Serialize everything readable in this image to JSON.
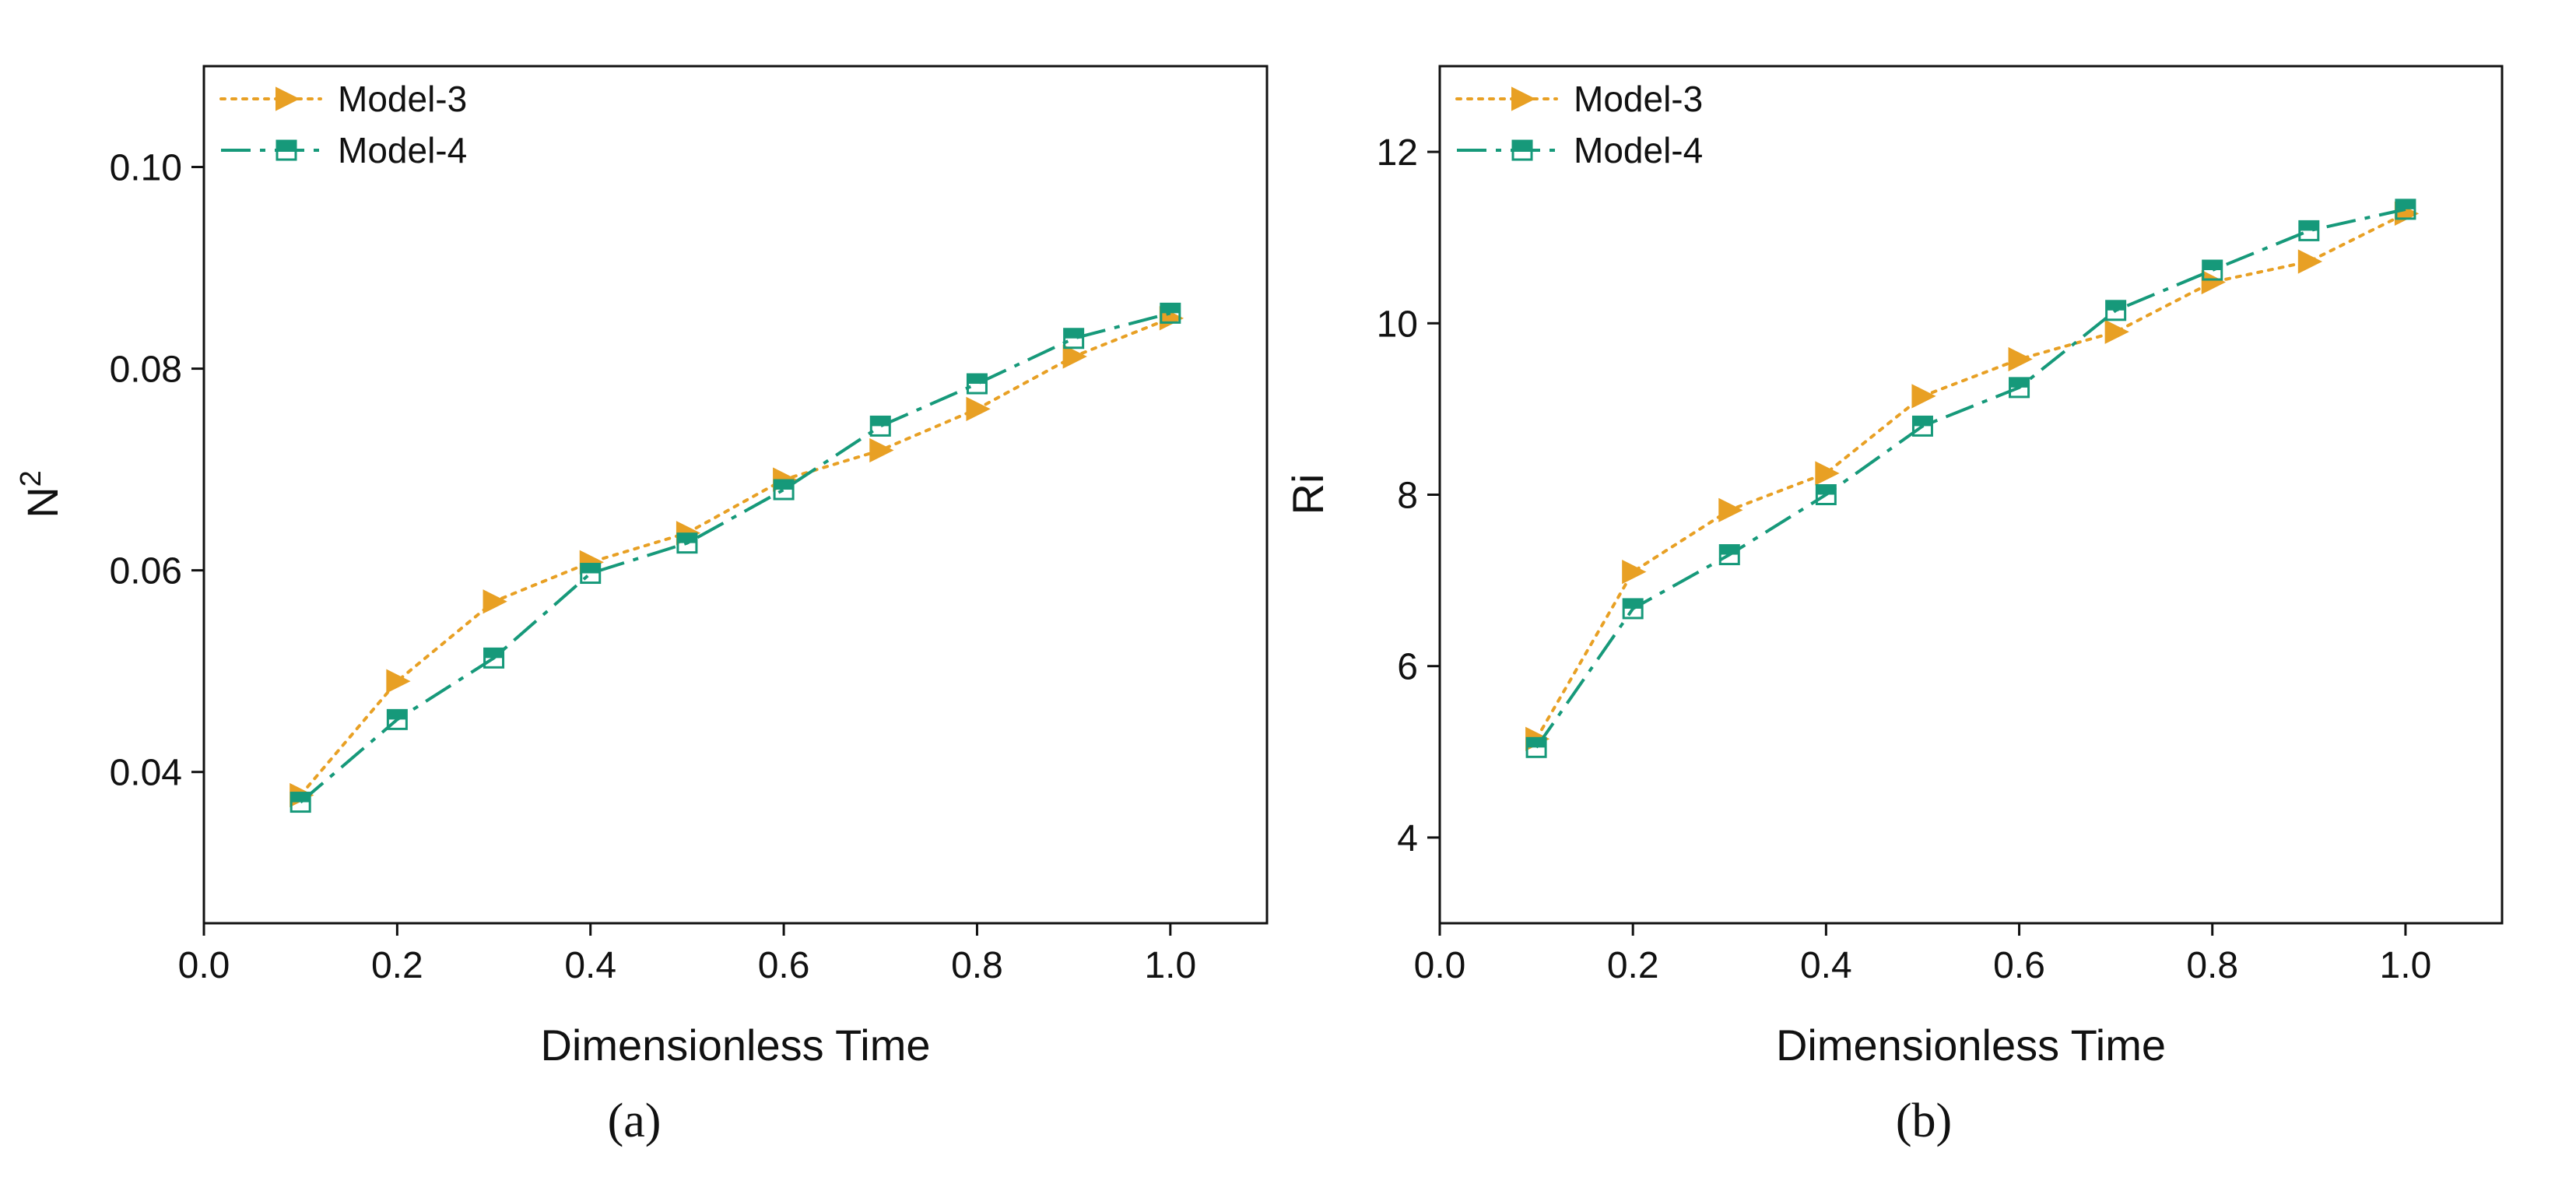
{
  "chart_data": [
    {
      "type": "line",
      "caption": "(a)",
      "xlabel": "Dimensionless Time",
      "ylabel_base": "N",
      "ylabel_sup": "2",
      "xlim": [
        0.0,
        1.1
      ],
      "ylim": [
        0.025,
        0.11
      ],
      "xticks": [
        0.0,
        0.2,
        0.4,
        0.6,
        0.8,
        1.0
      ],
      "xtick_labels": [
        "0.0",
        "0.2",
        "0.4",
        "0.6",
        "0.8",
        "1.0"
      ],
      "yticks": [
        0.04,
        0.06,
        0.08,
        0.1
      ],
      "ytick_labels": [
        "0.04",
        "0.06",
        "0.08",
        "0.10"
      ],
      "grid": false,
      "legend_position": "top-left",
      "x": [
        0.1,
        0.2,
        0.3,
        0.4,
        0.5,
        0.6,
        0.7,
        0.8,
        0.9,
        1.0
      ],
      "series": [
        {
          "name": "Model-3",
          "marker": "triangle-right",
          "line": "dotted",
          "color": "#E8A024",
          "values": [
            0.0377,
            0.049,
            0.0569,
            0.0608,
            0.0637,
            0.069,
            0.0719,
            0.076,
            0.0812,
            0.085
          ]
        },
        {
          "name": "Model-4",
          "marker": "half-square",
          "line": "dash-dot",
          "color": "#16997A",
          "values": [
            0.037,
            0.0452,
            0.0513,
            0.0597,
            0.0627,
            0.068,
            0.0743,
            0.0785,
            0.083,
            0.0855
          ]
        }
      ]
    },
    {
      "type": "line",
      "caption": "(b)",
      "xlabel": "Dimensionless Time",
      "ylabel_base": "Ri",
      "ylabel_sup": "",
      "xlim": [
        0.0,
        1.1
      ],
      "ylim": [
        3.0,
        13.0
      ],
      "xticks": [
        0.0,
        0.2,
        0.4,
        0.6,
        0.8,
        1.0
      ],
      "xtick_labels": [
        "0.0",
        "0.2",
        "0.4",
        "0.6",
        "0.8",
        "1.0"
      ],
      "yticks": [
        4,
        6,
        8,
        10,
        12
      ],
      "ytick_labels": [
        "4",
        "6",
        "8",
        "10",
        "12"
      ],
      "grid": false,
      "legend_position": "top-left",
      "x": [
        0.1,
        0.2,
        0.3,
        0.4,
        0.5,
        0.6,
        0.7,
        0.8,
        0.9,
        1.0
      ],
      "series": [
        {
          "name": "Model-3",
          "marker": "triangle-right",
          "line": "dotted",
          "color": "#E8A024",
          "values": [
            5.15,
            7.1,
            7.82,
            8.25,
            9.15,
            9.58,
            9.9,
            10.48,
            10.72,
            11.28
          ]
        },
        {
          "name": "Model-4",
          "marker": "half-square",
          "line": "dash-dot",
          "color": "#16997A",
          "values": [
            5.05,
            6.67,
            7.3,
            8.0,
            8.8,
            9.25,
            10.15,
            10.62,
            11.08,
            11.33
          ]
        }
      ]
    }
  ]
}
